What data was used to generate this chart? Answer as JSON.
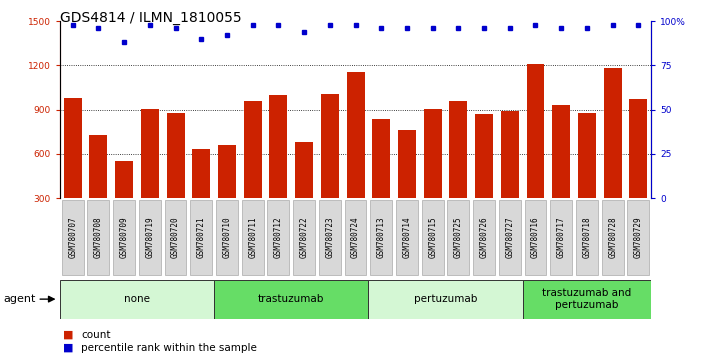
{
  "title": "GDS4814 / ILMN_1810055",
  "samples": [
    "GSM780707",
    "GSM780708",
    "GSM780709",
    "GSM780719",
    "GSM780720",
    "GSM780721",
    "GSM780710",
    "GSM780711",
    "GSM780712",
    "GSM780722",
    "GSM780723",
    "GSM780724",
    "GSM780713",
    "GSM780714",
    "GSM780715",
    "GSM780725",
    "GSM780726",
    "GSM780727",
    "GSM780716",
    "GSM780717",
    "GSM780718",
    "GSM780728",
    "GSM780729"
  ],
  "counts": [
    980,
    730,
    555,
    905,
    880,
    635,
    660,
    960,
    1000,
    680,
    1010,
    1155,
    840,
    760,
    905,
    960,
    870,
    890,
    1210,
    935,
    880,
    1180,
    975
  ],
  "percentiles": [
    98,
    96,
    88,
    98,
    96,
    90,
    92,
    98,
    98,
    94,
    98,
    98,
    96,
    96,
    96,
    96,
    96,
    96,
    98,
    96,
    96,
    98,
    98
  ],
  "groups": [
    {
      "label": "none",
      "start": 0,
      "end": 6,
      "color": "#d4f7d4"
    },
    {
      "label": "trastuzumab",
      "start": 6,
      "end": 12,
      "color": "#66dd66"
    },
    {
      "label": "pertuzumab",
      "start": 12,
      "end": 18,
      "color": "#d4f7d4"
    },
    {
      "label": "trastuzumab and\npertuzumab",
      "start": 18,
      "end": 23,
      "color": "#66dd66"
    }
  ],
  "ylim_left": [
    300,
    1500
  ],
  "ylim_right": [
    0,
    100
  ],
  "yticks_left": [
    300,
    600,
    900,
    1200,
    1500
  ],
  "yticks_right": [
    0,
    25,
    50,
    75,
    100
  ],
  "bar_color": "#cc2200",
  "dot_color": "#0000cc",
  "agent_label": "agent",
  "legend_count": "count",
  "legend_percentile": "percentile rank within the sample",
  "title_fontsize": 10,
  "tick_fontsize": 6.5,
  "group_fontsize": 7.5
}
